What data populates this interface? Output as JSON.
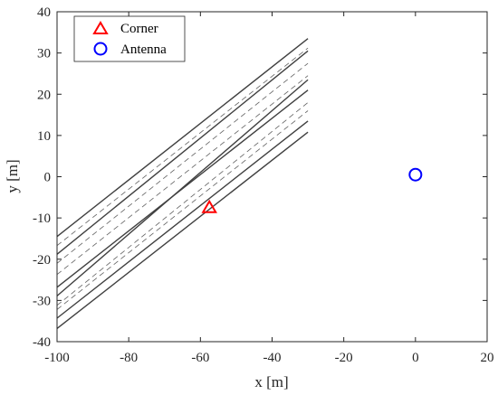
{
  "chart_data": {
    "type": "line",
    "xlabel": "x [m]",
    "ylabel": "y [m]",
    "xlim": [
      -100,
      20
    ],
    "ylim": [
      -40,
      40
    ],
    "xticks": [
      -100,
      -80,
      -60,
      -40,
      -20,
      0,
      20
    ],
    "yticks": [
      -40,
      -30,
      -20,
      -10,
      0,
      10,
      20,
      30,
      40
    ],
    "grid": false,
    "legend_position": "top-left",
    "road_lines": {
      "x_range": [
        -100,
        -30
      ],
      "solid_color": "#404040",
      "dashed_color": "#606060",
      "solid": [
        {
          "y": [
            -14.5,
            33.5
          ]
        },
        {
          "y": [
            -18.8,
            30.5
          ]
        },
        {
          "y": [
            -26.8,
            21.0
          ]
        },
        {
          "y": [
            -28.9,
            23.5
          ]
        },
        {
          "y": [
            -34.3,
            13.5
          ]
        },
        {
          "y": [
            -36.8,
            10.8
          ]
        }
      ],
      "dashed": [
        {
          "y": [
            -16.7,
            31.2
          ]
        },
        {
          "y": [
            -21.0,
            27.5
          ]
        },
        {
          "y": [
            -23.7,
            24.5
          ]
        },
        {
          "y": [
            -31.2,
            18.0
          ]
        },
        {
          "y": [
            -32.2,
            16.0
          ]
        }
      ]
    },
    "series": [
      {
        "name": "Corner",
        "marker": "triangle",
        "color": "#ff0000",
        "x": [
          -57.5
        ],
        "y": [
          -7.5
        ]
      },
      {
        "name": "Antenna",
        "marker": "circle",
        "color": "#0000ff",
        "x": [
          0
        ],
        "y": [
          0.5
        ]
      }
    ]
  }
}
